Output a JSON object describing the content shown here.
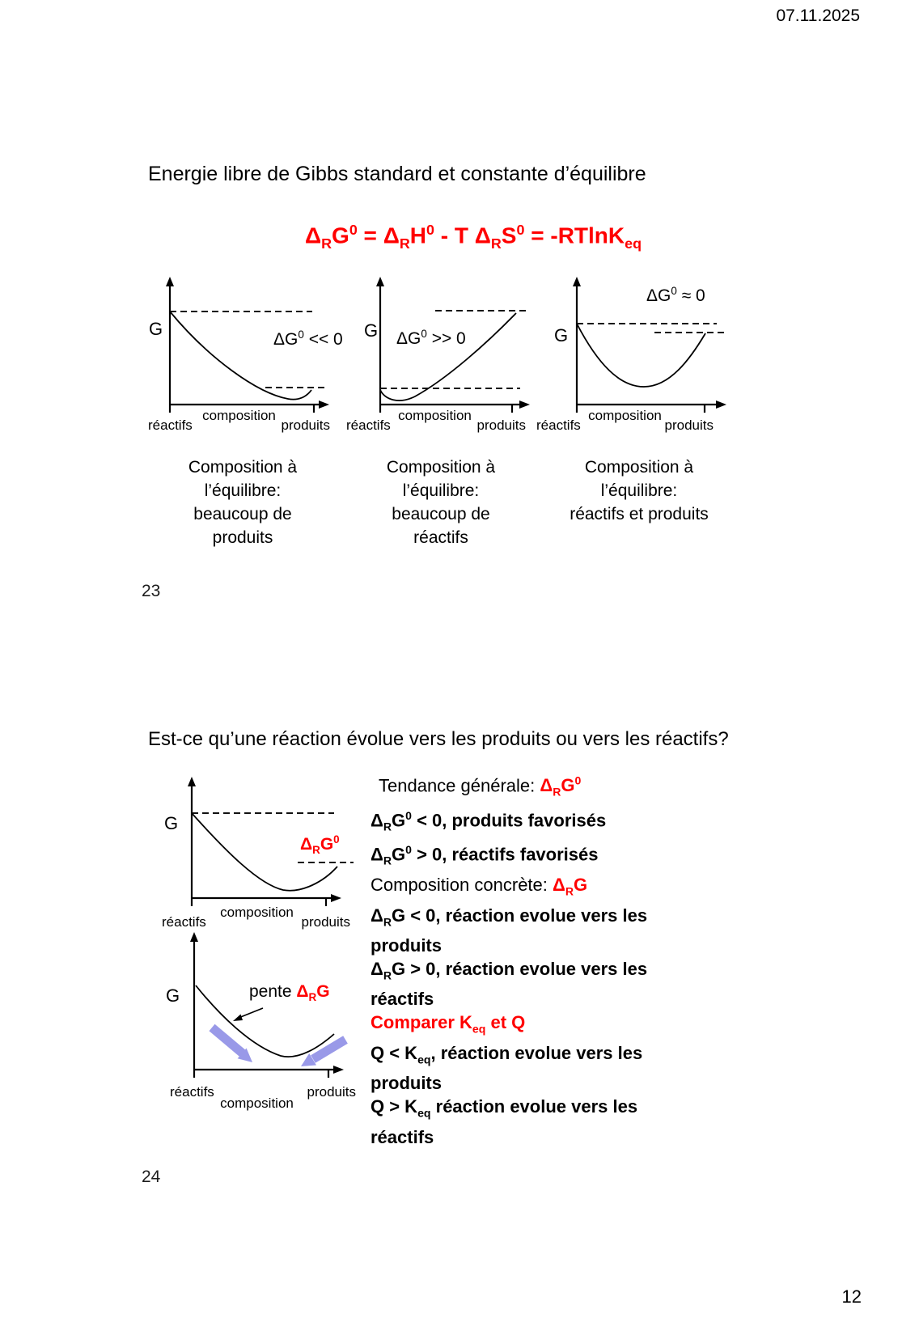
{
  "page": {
    "date": "07.11.2025",
    "number": "12"
  },
  "slide23": {
    "number": "23",
    "title": "Energie libre de Gibbs standard et constante d’équilibre",
    "formula": "Δ_{R}G^{0} = Δ_{R}H^{0} - T Δ_{R}S^{0} = -RTlnK_{eq}",
    "graph1": {
      "y_axis": "G",
      "annotation": "ΔG^{0} << 0",
      "x_start": "réactifs",
      "x_axis": "composition",
      "x_end": "produits",
      "caption": "Composition à\nl’équilibre:\nbeaucoup de\nproduits"
    },
    "graph2": {
      "y_axis": "G",
      "annotation": "ΔG^{0} >> 0",
      "x_start": "réactifs",
      "x_axis": "composition",
      "x_end": "produits",
      "caption": "Composition à\nl’équilibre:\nbeaucoup de\nréactifs"
    },
    "graph3": {
      "y_axis": "G",
      "annotation": "ΔG^{0} ≈ 0",
      "x_start": "réactifs",
      "x_axis": "composition",
      "x_end": "produits",
      "caption": "Composition à\nl’équilibre:\nréactifs et produits"
    }
  },
  "slide24": {
    "number": "24",
    "title": "Est-ce qu’une réaction évolue vers les produits ou vers les réactifs?",
    "graph_top": {
      "y_axis": "G",
      "annotation": "Δ_{R}G^{0}",
      "x_start": "réactifs",
      "x_axis": "composition",
      "x_end": "produits"
    },
    "graph_bottom": {
      "y_axis": "G",
      "slope_prefix": "pente ",
      "slope_term": "Δ_{R}G",
      "x_start": "réactifs",
      "x_axis": "composition",
      "x_end": "produits"
    },
    "text": {
      "tendance_label": "Tendance générale: ",
      "tendance_term": "Δ_{R}G^{0}",
      "tendance_line1": "Δ_{R}G^{0} < 0, produits favorisés",
      "tendance_line2": "Δ_{R}G^{0} > 0, réactifs favorisés",
      "composition_label": "Composition concrète: ",
      "composition_term": "Δ_{R}G",
      "composition_line1": "Δ_{R}G < 0, réaction evolue vers les\nproduits",
      "composition_line2": "Δ_{R}G > 0, réaction evolue vers les\nréactifs",
      "comparer_heading": "Comparer K_{eq} et Q",
      "comparer_line1": "Q < K_{eq}, réaction evolue vers les\nproduits",
      "comparer_line2": "Q > K_{eq} réaction evolue vers les\nréactifs"
    }
  },
  "colors": {
    "accent_red": "#FF0000",
    "arrow_purple": "#9999E8"
  }
}
